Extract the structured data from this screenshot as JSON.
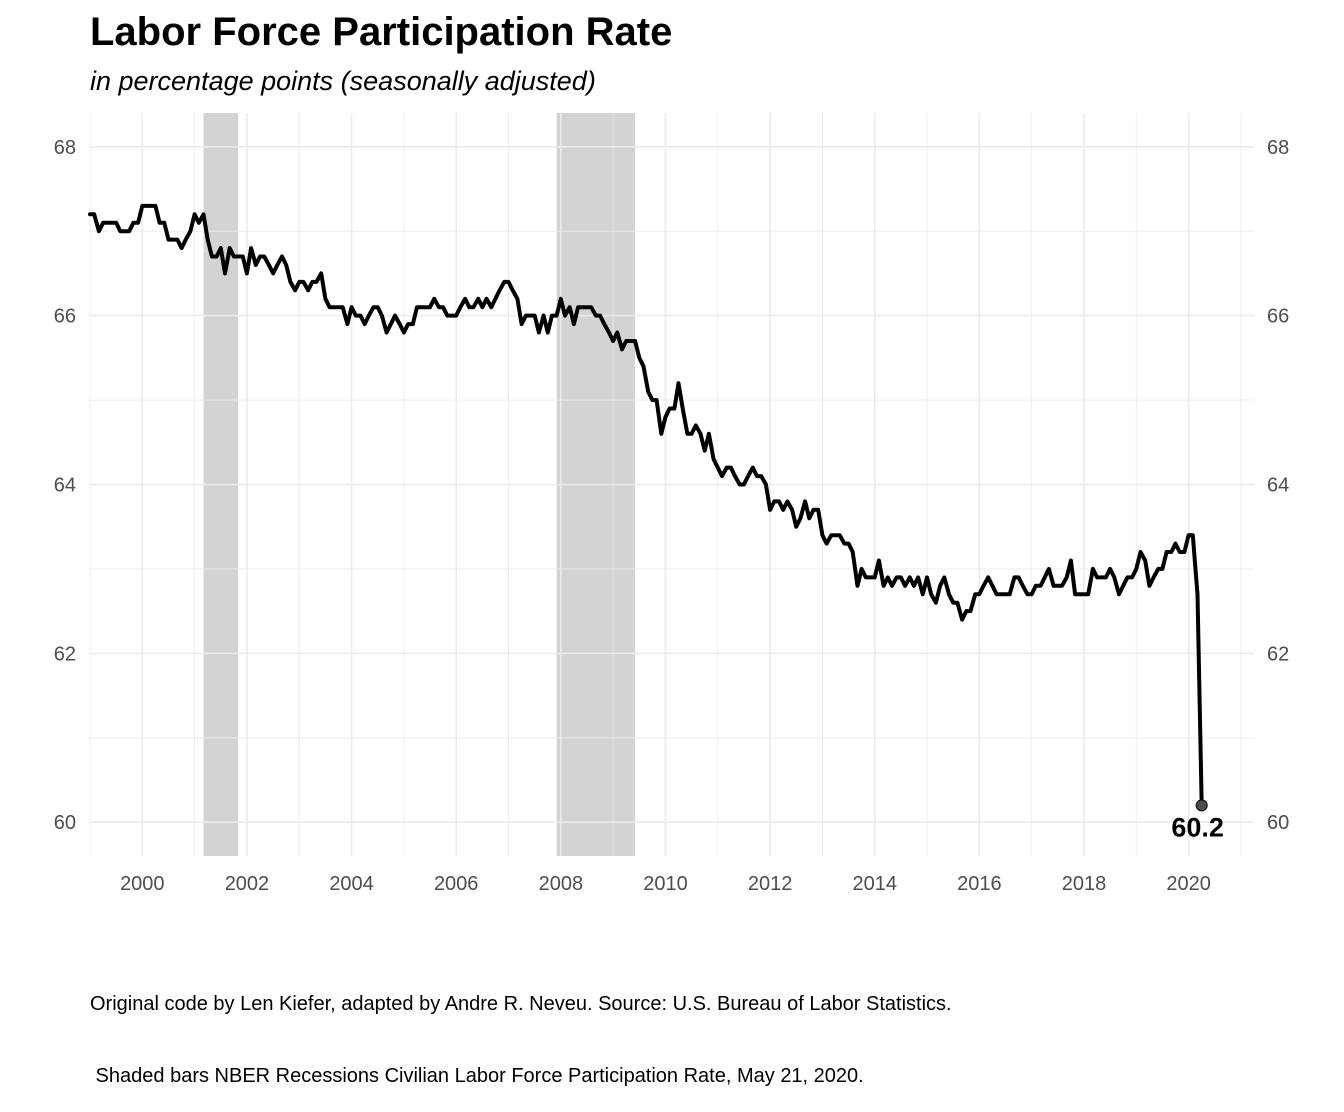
{
  "chart_data": {
    "type": "line",
    "title": "Labor Force Participation Rate",
    "subtitle": "in percentage points (seasonally adjusted)",
    "caption_lines": [
      "Original code by Len Kiefer, adapted by Andre R. Neveu. Source: U.S. Bureau of Labor Statistics.",
      " Shaded bars NBER Recessions Civilian Labor Force Participation Rate, May 21, 2020."
    ],
    "xlabel": "",
    "ylabel": "",
    "x_ticks": [
      "2000",
      "2002",
      "2004",
      "2006",
      "2008",
      "2010",
      "2012",
      "2014",
      "2016",
      "2018",
      "2020"
    ],
    "y_ticks": [
      "60",
      "62",
      "64",
      "66",
      "68"
    ],
    "xlim": [
      1999.0,
      2021.25
    ],
    "ylim": [
      59.6,
      68.4
    ],
    "grid": true,
    "secondary_y_axis": true,
    "recessions": [
      {
        "start": 2001.17,
        "end": 2001.83
      },
      {
        "start": 2007.92,
        "end": 2009.42
      }
    ],
    "series": [
      {
        "x": [
          1999.0,
          1999.08,
          1999.17,
          1999.25,
          1999.33,
          1999.42,
          1999.5,
          1999.58,
          1999.67,
          1999.75,
          1999.83,
          1999.92,
          2000.0,
          2000.08,
          2000.17,
          2000.25,
          2000.33,
          2000.42,
          2000.5,
          2000.58,
          2000.67,
          2000.75,
          2000.83,
          2000.92,
          2001.0,
          2001.08,
          2001.17,
          2001.25,
          2001.33,
          2001.42,
          2001.5,
          2001.58,
          2001.67,
          2001.75,
          2001.83,
          2001.92,
          2002.0,
          2002.08,
          2002.17,
          2002.25,
          2002.33,
          2002.42,
          2002.5,
          2002.58,
          2002.67,
          2002.75,
          2002.83,
          2002.92,
          2003.0,
          2003.08,
          2003.17,
          2003.25,
          2003.33,
          2003.42,
          2003.5,
          2003.58,
          2003.67,
          2003.75,
          2003.83,
          2003.92,
          2004.0,
          2004.08,
          2004.17,
          2004.25,
          2004.33,
          2004.42,
          2004.5,
          2004.58,
          2004.67,
          2004.75,
          2004.83,
          2004.92,
          2005.0,
          2005.08,
          2005.17,
          2005.25,
          2005.33,
          2005.42,
          2005.5,
          2005.58,
          2005.67,
          2005.75,
          2005.83,
          2005.92,
          2006.0,
          2006.08,
          2006.17,
          2006.25,
          2006.33,
          2006.42,
          2006.5,
          2006.58,
          2006.67,
          2006.75,
          2006.83,
          2006.92,
          2007.0,
          2007.08,
          2007.17,
          2007.25,
          2007.33,
          2007.42,
          2007.5,
          2007.58,
          2007.67,
          2007.75,
          2007.83,
          2007.92,
          2008.0,
          2008.08,
          2008.17,
          2008.25,
          2008.33,
          2008.42,
          2008.5,
          2008.58,
          2008.67,
          2008.75,
          2008.83,
          2008.92,
          2009.0,
          2009.08,
          2009.17,
          2009.25,
          2009.33,
          2009.42,
          2009.5,
          2009.58,
          2009.67,
          2009.75,
          2009.83,
          2009.92,
          2010.0,
          2010.08,
          2010.17,
          2010.25,
          2010.33,
          2010.42,
          2010.5,
          2010.58,
          2010.67,
          2010.75,
          2010.83,
          2010.92,
          2011.0,
          2011.08,
          2011.17,
          2011.25,
          2011.33,
          2011.42,
          2011.5,
          2011.58,
          2011.67,
          2011.75,
          2011.83,
          2011.92,
          2012.0,
          2012.08,
          2012.17,
          2012.25,
          2012.33,
          2012.42,
          2012.5,
          2012.58,
          2012.67,
          2012.75,
          2012.83,
          2012.92,
          2013.0,
          2013.08,
          2013.17,
          2013.25,
          2013.33,
          2013.42,
          2013.5,
          2013.58,
          2013.67,
          2013.75,
          2013.83,
          2013.92,
          2014.0,
          2014.08,
          2014.17,
          2014.25,
          2014.33,
          2014.42,
          2014.5,
          2014.58,
          2014.67,
          2014.75,
          2014.83,
          2014.92,
          2015.0,
          2015.08,
          2015.17,
          2015.25,
          2015.33,
          2015.42,
          2015.5,
          2015.58,
          2015.67,
          2015.75,
          2015.83,
          2015.92,
          2016.0,
          2016.08,
          2016.17,
          2016.25,
          2016.33,
          2016.42,
          2016.5,
          2016.58,
          2016.67,
          2016.75,
          2016.83,
          2016.92,
          2017.0,
          2017.08,
          2017.17,
          2017.25,
          2017.33,
          2017.42,
          2017.5,
          2017.58,
          2017.67,
          2017.75,
          2017.83,
          2017.92,
          2018.0,
          2018.08,
          2018.17,
          2018.25,
          2018.33,
          2018.42,
          2018.5,
          2018.58,
          2018.67,
          2018.75,
          2018.83,
          2018.92,
          2019.0,
          2019.08,
          2019.17,
          2019.25,
          2019.33,
          2019.42,
          2019.5,
          2019.58,
          2019.67,
          2019.75,
          2019.83,
          2019.92,
          2020.0,
          2020.08,
          2020.17,
          2020.25
        ],
        "values": [
          67.2,
          67.2,
          67.0,
          67.1,
          67.1,
          67.1,
          67.1,
          67.0,
          67.0,
          67.0,
          67.1,
          67.1,
          67.3,
          67.3,
          67.3,
          67.3,
          67.1,
          67.1,
          66.9,
          66.9,
          66.9,
          66.8,
          66.9,
          67.0,
          67.2,
          67.1,
          67.2,
          66.9,
          66.7,
          66.7,
          66.8,
          66.5,
          66.8,
          66.7,
          66.7,
          66.7,
          66.5,
          66.8,
          66.6,
          66.7,
          66.7,
          66.6,
          66.5,
          66.6,
          66.7,
          66.6,
          66.4,
          66.3,
          66.4,
          66.4,
          66.3,
          66.4,
          66.4,
          66.5,
          66.2,
          66.1,
          66.1,
          66.1,
          66.1,
          65.9,
          66.1,
          66.0,
          66.0,
          65.9,
          66.0,
          66.1,
          66.1,
          66.0,
          65.8,
          65.9,
          66.0,
          65.9,
          65.8,
          65.9,
          65.9,
          66.1,
          66.1,
          66.1,
          66.1,
          66.2,
          66.1,
          66.1,
          66.0,
          66.0,
          66.0,
          66.1,
          66.2,
          66.1,
          66.1,
          66.2,
          66.1,
          66.2,
          66.1,
          66.2,
          66.3,
          66.4,
          66.4,
          66.3,
          66.2,
          65.9,
          66.0,
          66.0,
          66.0,
          65.8,
          66.0,
          65.8,
          66.0,
          66.0,
          66.2,
          66.0,
          66.1,
          65.9,
          66.1,
          66.1,
          66.1,
          66.1,
          66.0,
          66.0,
          65.9,
          65.8,
          65.7,
          65.8,
          65.6,
          65.7,
          65.7,
          65.7,
          65.5,
          65.4,
          65.1,
          65.0,
          65.0,
          64.6,
          64.8,
          64.9,
          64.9,
          65.2,
          64.9,
          64.6,
          64.6,
          64.7,
          64.6,
          64.4,
          64.6,
          64.3,
          64.2,
          64.1,
          64.2,
          64.2,
          64.1,
          64.0,
          64.0,
          64.1,
          64.2,
          64.1,
          64.1,
          64.0,
          63.7,
          63.8,
          63.8,
          63.7,
          63.8,
          63.7,
          63.5,
          63.6,
          63.8,
          63.6,
          63.7,
          63.7,
          63.4,
          63.3,
          63.4,
          63.4,
          63.4,
          63.3,
          63.3,
          63.2,
          62.8,
          63.0,
          62.9,
          62.9,
          62.9,
          63.1,
          62.8,
          62.9,
          62.8,
          62.9,
          62.9,
          62.8,
          62.9,
          62.8,
          62.9,
          62.7,
          62.9,
          62.7,
          62.6,
          62.8,
          62.9,
          62.7,
          62.6,
          62.6,
          62.4,
          62.5,
          62.5,
          62.7,
          62.7,
          62.8,
          62.9,
          62.8,
          62.7,
          62.7,
          62.7,
          62.7,
          62.9,
          62.9,
          62.8,
          62.7,
          62.7,
          62.8,
          62.8,
          62.9,
          63.0,
          62.8,
          62.8,
          62.8,
          62.9,
          63.1,
          62.7,
          62.7,
          62.7,
          62.7,
          63.0,
          62.9,
          62.9,
          62.9,
          63.0,
          62.9,
          62.7,
          62.8,
          62.9,
          62.9,
          63.0,
          63.2,
          63.1,
          62.8,
          62.9,
          63.0,
          63.0,
          63.2,
          63.2,
          63.3,
          63.2,
          63.2,
          63.4,
          63.4,
          62.7,
          60.2
        ],
        "color": "#000000"
      }
    ],
    "annotations": [
      {
        "text": "60.2",
        "x": 2020.25,
        "y": 60.2
      }
    ],
    "colors": {
      "line": "#000000",
      "recession_band": "#d3d3d3",
      "grid": "#ebebeb",
      "tick_label": "#4d4d4d",
      "end_point": "#4d4d4d"
    }
  }
}
